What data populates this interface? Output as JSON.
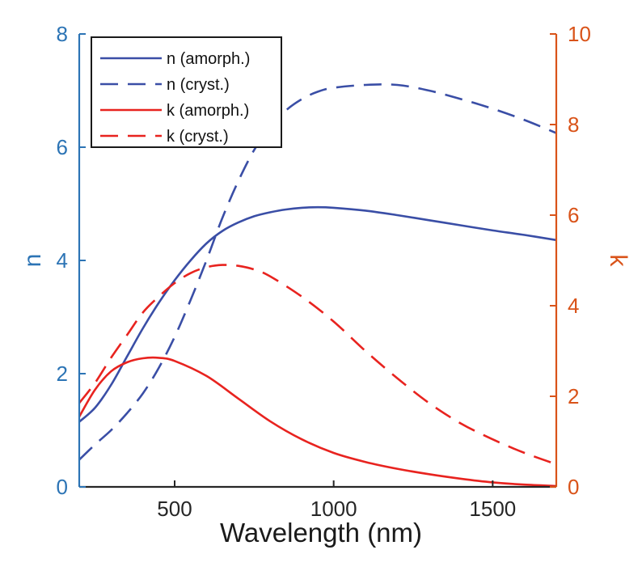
{
  "chart_data": {
    "type": "line",
    "xlabel": "Wavelength (nm)",
    "ylabel_left": "n",
    "ylabel_right": "k",
    "xlim": [
      200,
      1700
    ],
    "ylim_left": [
      0,
      8
    ],
    "ylim_right": [
      0,
      10
    ],
    "xticks": [
      500,
      1000,
      1500
    ],
    "yticks_left": [
      0,
      2,
      4,
      6,
      8
    ],
    "yticks_right": [
      0,
      2,
      4,
      6,
      8,
      10
    ],
    "legend_location": "top-left",
    "grid": false,
    "colors": {
      "left_axis": "#2c74b5",
      "right_axis": "#d95319",
      "n_series": "#3a4ea6",
      "k_series": "#e8231f"
    },
    "series": [
      {
        "name": "n (amorph.)",
        "axis": "left",
        "style": "solid",
        "color": "#3a4ea6",
        "x": [
          200,
          250,
          300,
          350,
          400,
          450,
          500,
          550,
          600,
          650,
          700,
          750,
          800,
          850,
          900,
          950,
          1000,
          1100,
          1200,
          1300,
          1400,
          1500,
          1600,
          1700
        ],
        "y": [
          1.15,
          1.4,
          1.8,
          2.3,
          2.8,
          3.25,
          3.65,
          4.0,
          4.3,
          4.52,
          4.67,
          4.78,
          4.85,
          4.9,
          4.93,
          4.94,
          4.93,
          4.88,
          4.8,
          4.71,
          4.62,
          4.53,
          4.45,
          4.36
        ]
      },
      {
        "name": "n (cryst.)",
        "axis": "left",
        "style": "dashed",
        "color": "#3a4ea6",
        "x": [
          200,
          250,
          300,
          350,
          400,
          450,
          500,
          550,
          600,
          650,
          700,
          750,
          800,
          850,
          900,
          950,
          1000,
          1100,
          1200,
          1300,
          1400,
          1500,
          1600,
          1700
        ],
        "y": [
          0.48,
          0.75,
          1.0,
          1.3,
          1.65,
          2.1,
          2.65,
          3.3,
          4.0,
          4.75,
          5.4,
          5.95,
          6.35,
          6.65,
          6.85,
          6.98,
          7.05,
          7.1,
          7.1,
          7.0,
          6.85,
          6.68,
          6.48,
          6.25
        ]
      },
      {
        "name": "k (amorph.)",
        "axis": "right",
        "style": "solid",
        "color": "#e8231f",
        "x": [
          200,
          250,
          300,
          350,
          400,
          450,
          500,
          600,
          700,
          800,
          900,
          1000,
          1100,
          1200,
          1300,
          1400,
          1500,
          1600,
          1700
        ],
        "y": [
          1.55,
          2.15,
          2.55,
          2.75,
          2.84,
          2.85,
          2.78,
          2.45,
          1.95,
          1.45,
          1.05,
          0.75,
          0.55,
          0.4,
          0.28,
          0.18,
          0.1,
          0.05,
          0.02
        ]
      },
      {
        "name": "k (cryst.)",
        "axis": "right",
        "style": "dashed",
        "color": "#e8231f",
        "x": [
          200,
          250,
          300,
          350,
          400,
          450,
          500,
          550,
          600,
          650,
          700,
          750,
          800,
          900,
          1000,
          1100,
          1200,
          1300,
          1400,
          1500,
          1600,
          1700
        ],
        "y": [
          1.85,
          2.3,
          2.85,
          3.35,
          3.85,
          4.2,
          4.5,
          4.72,
          4.85,
          4.9,
          4.88,
          4.8,
          4.65,
          4.2,
          3.65,
          3.0,
          2.4,
          1.85,
          1.4,
          1.05,
          0.75,
          0.5
        ]
      }
    ]
  }
}
